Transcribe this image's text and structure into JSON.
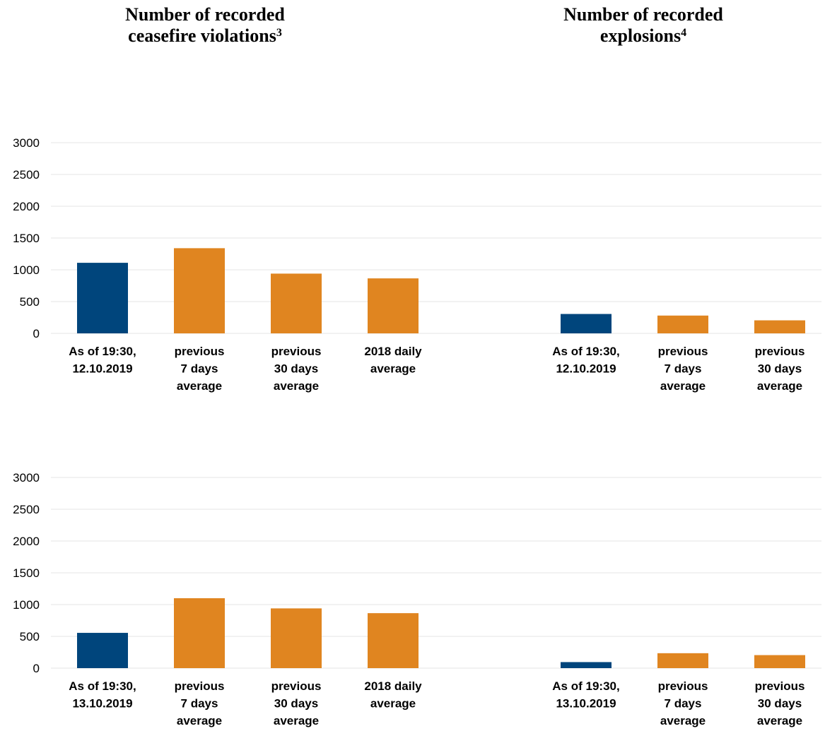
{
  "titles": {
    "left": "Number of recorded ceasefire violations",
    "left_sup": "3",
    "right": "Number of recorded explosions",
    "right_sup": "4"
  },
  "colors": {
    "current": "#00457c",
    "average": "#e08520",
    "grid": "#e6e6e6"
  },
  "chart_data": [
    {
      "type": "bar",
      "categories": [
        "As of 19:30, 12.10.2019",
        "previous 7 days average",
        "previous 30 days average",
        "2018 daily average"
      ],
      "values": [
        1110,
        1340,
        940,
        865
      ],
      "ylim": [
        0,
        3000
      ],
      "yticks": [
        0,
        500,
        1000,
        1500,
        2000,
        2500,
        3000
      ]
    },
    {
      "type": "bar",
      "categories": [
        "As of 19:30, 12.10.2019",
        "previous 7 days average",
        "previous 30 days average"
      ],
      "values": [
        305,
        280,
        205
      ],
      "ylim": [
        0,
        3000
      ]
    },
    {
      "type": "bar",
      "categories": [
        "As of 19:30, 13.10.2019",
        "previous 7 days average",
        "previous 30 days average",
        "2018 daily average"
      ],
      "values": [
        555,
        1100,
        940,
        865
      ],
      "ylim": [
        0,
        3000
      ],
      "yticks": [
        0,
        500,
        1000,
        1500,
        2000,
        2500,
        3000
      ]
    },
    {
      "type": "bar",
      "categories": [
        "As of 19:30, 13.10.2019",
        "previous 7 days average",
        "previous 30 days average"
      ],
      "values": [
        95,
        235,
        205
      ],
      "ylim": [
        0,
        3000
      ]
    }
  ]
}
